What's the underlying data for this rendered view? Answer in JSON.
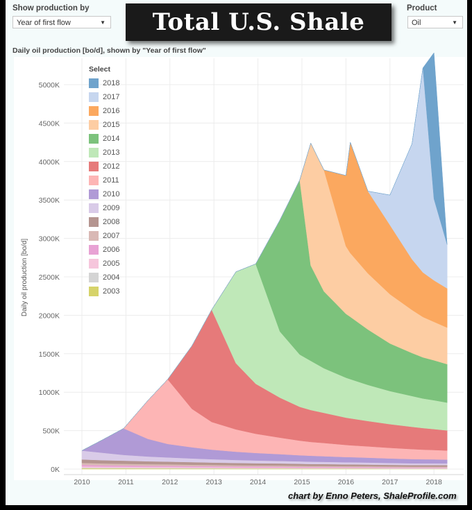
{
  "controls": {
    "show_by_label": "Show production by",
    "show_by_value": "Year of first flow",
    "product_label": "Product",
    "product_value": "Oil",
    "dropdown_arrow": "▼"
  },
  "title": "Total U.S. Shale",
  "credit": "chart by Enno Peters, ShaleProfile.com",
  "chart_data": {
    "type": "area",
    "stacked": true,
    "title": "Daily oil production [bo/d], shown by \"Year of first flow\"",
    "xlabel": "",
    "ylabel": "Daily oil production [bo/d]",
    "xlim": [
      2009.6,
      2018.6
    ],
    "ylim": [
      0,
      5300
    ],
    "y_unit": "K",
    "x_ticks": [
      "2010",
      "2011",
      "2012",
      "2013",
      "2014",
      "2015",
      "2016",
      "2017",
      "2018"
    ],
    "y_ticks": [
      "0K",
      "500K",
      "1000K",
      "1500K",
      "2000K",
      "2500K",
      "3000K",
      "3500K",
      "4000K",
      "4500K",
      "5000K"
    ],
    "grid": true,
    "legend_title": "Select",
    "legend_position": "top-left",
    "x": [
      2010.0,
      2010.5,
      2010.95,
      2011.5,
      2011.95,
      2012.5,
      2012.95,
      2013.5,
      2013.95,
      2014.5,
      2014.95,
      2015.2,
      2015.5,
      2016.0,
      2016.1,
      2016.5,
      2017.0,
      2017.5,
      2017.75,
      2018.0,
      2018.3
    ],
    "series": [
      {
        "name": "2003",
        "color": "#d6d36a",
        "values": [
          10,
          9,
          9,
          8,
          8,
          7,
          7,
          6,
          6,
          6,
          5,
          5,
          5,
          5,
          5,
          5,
          4,
          4,
          4,
          4,
          4
        ]
      },
      {
        "name": "2004",
        "color": "#d4d4d4",
        "values": [
          10,
          9,
          9,
          8,
          8,
          7,
          7,
          6,
          6,
          6,
          5,
          5,
          5,
          5,
          5,
          5,
          4,
          4,
          4,
          4,
          4
        ]
      },
      {
        "name": "2005",
        "color": "#f6c6dc",
        "values": [
          15,
          14,
          13,
          12,
          12,
          11,
          10,
          10,
          9,
          9,
          8,
          8,
          8,
          7,
          7,
          7,
          7,
          6,
          6,
          6,
          6
        ]
      },
      {
        "name": "2006",
        "color": "#e8a2d4",
        "values": [
          20,
          18,
          17,
          16,
          15,
          14,
          13,
          12,
          12,
          11,
          11,
          10,
          10,
          9,
          9,
          9,
          8,
          8,
          8,
          8,
          8
        ]
      },
      {
        "name": "2007",
        "color": "#d9b9b5",
        "values": [
          25,
          23,
          21,
          20,
          19,
          18,
          17,
          16,
          15,
          14,
          14,
          13,
          13,
          12,
          12,
          11,
          11,
          10,
          10,
          10,
          10
        ]
      },
      {
        "name": "2008",
        "color": "#b59590",
        "values": [
          45,
          42,
          40,
          37,
          35,
          33,
          31,
          29,
          28,
          27,
          26,
          25,
          24,
          23,
          23,
          22,
          21,
          20,
          20,
          20,
          19
        ]
      },
      {
        "name": "2009",
        "color": "#d9cbe8",
        "values": [
          115,
          95,
          75,
          62,
          55,
          48,
          43,
          39,
          36,
          33,
          31,
          30,
          29,
          27,
          27,
          26,
          24,
          23,
          22,
          22,
          22
        ]
      },
      {
        "name": "2010",
        "color": "#b09ad6",
        "values": [
          0,
          180,
          345,
          230,
          175,
          145,
          125,
          108,
          97,
          88,
          80,
          77,
          73,
          68,
          67,
          63,
          59,
          55,
          53,
          52,
          50
        ]
      },
      {
        "name": "2011",
        "color": "#fdb5b5",
        "values": [
          0,
          0,
          0,
          500,
          840,
          500,
          360,
          290,
          250,
          215,
          190,
          180,
          172,
          158,
          155,
          147,
          138,
          130,
          126,
          122,
          118
        ]
      },
      {
        "name": "2012",
        "color": "#e67a7a",
        "values": [
          0,
          0,
          0,
          0,
          0,
          820,
          1460,
          860,
          650,
          520,
          440,
          415,
          392,
          355,
          350,
          330,
          308,
          290,
          280,
          272,
          262
        ]
      },
      {
        "name": "2013",
        "color": "#bfe8b8",
        "values": [
          0,
          0,
          0,
          0,
          0,
          0,
          0,
          1190,
          1560,
          860,
          680,
          640,
          580,
          520,
          510,
          470,
          430,
          400,
          385,
          375,
          362
        ]
      },
      {
        "name": "2014",
        "color": "#7cc27c",
        "values": [
          0,
          0,
          0,
          0,
          0,
          0,
          0,
          0,
          0,
          1450,
          2270,
          1240,
          1000,
          830,
          810,
          720,
          620,
          560,
          535,
          520,
          500
        ]
      },
      {
        "name": "2015",
        "color": "#fdcda3",
        "values": [
          0,
          0,
          0,
          0,
          0,
          0,
          0,
          0,
          0,
          0,
          0,
          1590,
          1580,
          880,
          830,
          730,
          640,
          560,
          525,
          500,
          475
        ]
      },
      {
        "name": "2016",
        "color": "#fba85f",
        "values": [
          0,
          0,
          0,
          0,
          0,
          0,
          0,
          0,
          0,
          0,
          0,
          0,
          0,
          920,
          1440,
          1070,
          900,
          660,
          580,
          540,
          510
        ]
      },
      {
        "name": "2017",
        "color": "#c6d6ef",
        "values": [
          0,
          0,
          0,
          0,
          0,
          0,
          0,
          0,
          0,
          0,
          0,
          0,
          0,
          0,
          0,
          0,
          390,
          1500,
          2660,
          1060,
          570
        ]
      },
      {
        "name": "2018",
        "color": "#6fa3cc",
        "values": [
          0,
          0,
          0,
          0,
          0,
          0,
          0,
          0,
          0,
          0,
          0,
          0,
          0,
          0,
          0,
          0,
          0,
          0,
          0,
          1900,
          0
        ]
      }
    ]
  }
}
